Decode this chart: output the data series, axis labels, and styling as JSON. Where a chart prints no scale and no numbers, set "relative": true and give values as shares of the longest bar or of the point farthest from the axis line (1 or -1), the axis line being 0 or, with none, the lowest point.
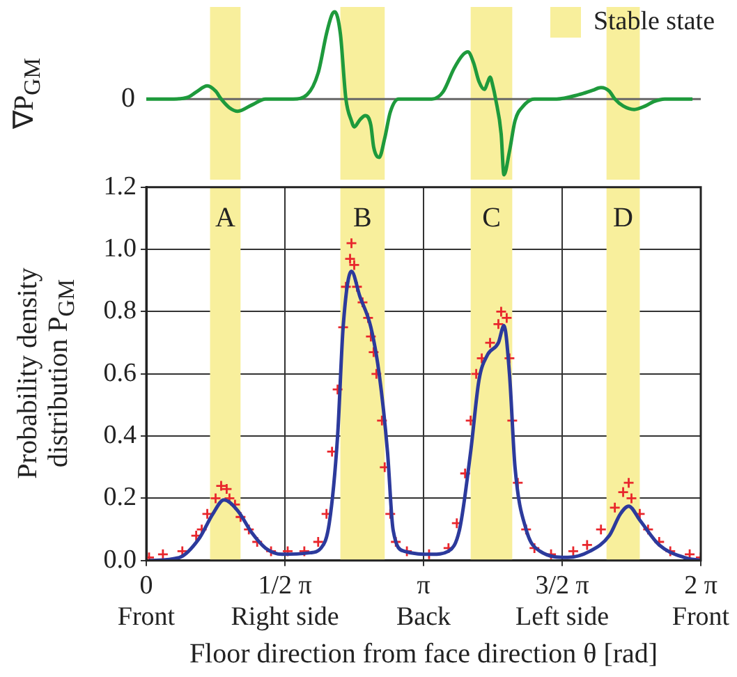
{
  "chart_data": [
    {
      "type": "line",
      "relative": true,
      "ylabel": "∇P$_{GM}$",
      "xlim": [
        0,
        2
      ],
      "tick_labels": false,
      "grid": false,
      "annotations": [
        "Stable state",
        "0"
      ],
      "bands": [
        {
          "axis": "x",
          "from": 0.23,
          "to": 0.34,
          "color": "#f8ef9c"
        },
        {
          "axis": "x",
          "from": 0.7,
          "to": 0.86,
          "color": "#f8ef9c"
        },
        {
          "axis": "x",
          "from": 1.17,
          "to": 1.32,
          "color": "#f8ef9c"
        },
        {
          "axis": "x",
          "from": 1.66,
          "to": 1.78,
          "color": "#f8ef9c"
        }
      ],
      "series": [
        {
          "color": "#1e9a3c",
          "marker": "none",
          "x": [
            0,
            0.1,
            0.15,
            0.18,
            0.22,
            0.25,
            0.27,
            0.3,
            0.33,
            0.38,
            0.43,
            0.53,
            0.58,
            0.62,
            0.65,
            0.67,
            0.68,
            0.7,
            0.72,
            0.74,
            0.75,
            0.77,
            0.79,
            0.81,
            0.82,
            0.84,
            0.86,
            0.88,
            0.91,
            1.03,
            1.07,
            1.11,
            1.14,
            1.16,
            1.18,
            1.2,
            1.22,
            1.23,
            1.24,
            1.25,
            1.26,
            1.28,
            1.29,
            1.31,
            1.33,
            1.36,
            1.4,
            1.48,
            1.56,
            1.61,
            1.64,
            1.67,
            1.69,
            1.72,
            1.76,
            1.8,
            1.83,
            1.87,
            1.97
          ],
          "values": [
            0,
            0,
            0.02,
            0.08,
            0.15,
            0.09,
            0,
            -0.1,
            -0.14,
            -0.07,
            0,
            0,
            0.05,
            0.3,
            0.75,
            0.97,
            1.0,
            0.75,
            0,
            -0.25,
            -0.32,
            -0.24,
            -0.19,
            -0.3,
            -0.55,
            -0.67,
            -0.45,
            -0.15,
            0,
            0,
            0.08,
            0.35,
            0.5,
            0.54,
            0.42,
            0.2,
            0.11,
            0.18,
            0.25,
            0.15,
            0,
            -0.4,
            -0.87,
            -0.6,
            -0.25,
            -0.08,
            0,
            0,
            0.05,
            0.1,
            0.13,
            0.09,
            0,
            -0.08,
            -0.12,
            -0.08,
            -0.03,
            0,
            0
          ]
        }
      ]
    },
    {
      "type": "scatter",
      "ylabel": "Probability density\ndistribution P$_{GM}$",
      "xlabel": "Floor direction from face direction θ [rad]",
      "xlim": [
        0,
        2
      ],
      "ylim": [
        0,
        1.2
      ],
      "grid": true,
      "xticks": [
        {
          "value": 0,
          "label": "0\nFront"
        },
        {
          "value": 0.5,
          "label": "1/2 π\nRight side"
        },
        {
          "value": 1,
          "label": "π\nBack"
        },
        {
          "value": 1.5,
          "label": "3/2 π\nLeft side"
        },
        {
          "value": 2,
          "label": "2 π\nFront"
        }
      ],
      "yticks": [
        {
          "value": 0,
          "label": "0.0"
        },
        {
          "value": 0.2,
          "label": "0.2"
        },
        {
          "value": 0.4,
          "label": "0.4"
        },
        {
          "value": 0.6,
          "label": "0.6"
        },
        {
          "value": 0.8,
          "label": "0.8"
        },
        {
          "value": 1.0,
          "label": "1.0"
        },
        {
          "value": 1.2,
          "label": "1.2"
        }
      ],
      "bands": [
        {
          "axis": "x",
          "from": 0.23,
          "to": 0.34,
          "label": "A",
          "color": "#f8ef9c"
        },
        {
          "axis": "x",
          "from": 0.7,
          "to": 0.86,
          "label": "B",
          "color": "#f8ef9c"
        },
        {
          "axis": "x",
          "from": 1.17,
          "to": 1.32,
          "label": "C",
          "color": "#f8ef9c"
        },
        {
          "axis": "x",
          "from": 1.66,
          "to": 1.78,
          "label": "D",
          "color": "#f8ef9c"
        }
      ],
      "series": [
        {
          "color": "#e8262c",
          "marker": "cross",
          "x": [
            0.01,
            0.06,
            0.13,
            0.18,
            0.2,
            0.22,
            0.25,
            0.27,
            0.29,
            0.3,
            0.32,
            0.34,
            0.37,
            0.4,
            0.45,
            0.51,
            0.57,
            0.62,
            0.65,
            0.67,
            0.69,
            0.71,
            0.72,
            0.735,
            0.74,
            0.75,
            0.76,
            0.78,
            0.8,
            0.81,
            0.82,
            0.83,
            0.85,
            0.86,
            0.88,
            0.9,
            0.94,
            1.02,
            1.09,
            1.12,
            1.15,
            1.17,
            1.19,
            1.21,
            1.24,
            1.27,
            1.28,
            1.3,
            1.31,
            1.32,
            1.34,
            1.37,
            1.4,
            1.46,
            1.54,
            1.59,
            1.64,
            1.69,
            1.72,
            1.74,
            1.75,
            1.78,
            1.81,
            1.85,
            1.89,
            1.96,
            2.0
          ],
          "values": [
            0.01,
            0.02,
            0.03,
            0.08,
            0.1,
            0.15,
            0.2,
            0.24,
            0.23,
            0.2,
            0.18,
            0.14,
            0.1,
            0.06,
            0.03,
            0.03,
            0.03,
            0.06,
            0.15,
            0.35,
            0.55,
            0.75,
            0.88,
            0.97,
            1.02,
            0.95,
            0.88,
            0.83,
            0.78,
            0.72,
            0.67,
            0.6,
            0.45,
            0.3,
            0.15,
            0.06,
            0.03,
            0.02,
            0.04,
            0.12,
            0.28,
            0.45,
            0.6,
            0.65,
            0.7,
            0.76,
            0.8,
            0.78,
            0.65,
            0.45,
            0.25,
            0.1,
            0.04,
            0.02,
            0.03,
            0.05,
            0.1,
            0.17,
            0.22,
            0.25,
            0.2,
            0.15,
            0.1,
            0.06,
            0.03,
            0.02,
            0.01
          ]
        },
        {
          "type": "line",
          "color": "#2c3a9c",
          "marker": "none",
          "x": [
            0.01,
            0.12,
            0.19,
            0.24,
            0.28,
            0.33,
            0.38,
            0.43,
            0.49,
            0.59,
            0.63,
            0.66,
            0.69,
            0.71,
            0.74,
            0.77,
            0.81,
            0.84,
            0.87,
            0.89,
            0.93,
            1.03,
            1.09,
            1.13,
            1.17,
            1.2,
            1.23,
            1.27,
            1.29,
            1.31,
            1.33,
            1.37,
            1.42,
            1.52,
            1.6,
            1.67,
            1.71,
            1.74,
            1.78,
            1.85,
            1.94,
            2.0
          ],
          "values": [
            0.0,
            0.01,
            0.07,
            0.15,
            0.195,
            0.16,
            0.09,
            0.04,
            0.02,
            0.025,
            0.04,
            0.12,
            0.4,
            0.75,
            0.93,
            0.85,
            0.75,
            0.6,
            0.35,
            0.1,
            0.03,
            0.02,
            0.03,
            0.1,
            0.35,
            0.58,
            0.66,
            0.7,
            0.755,
            0.6,
            0.3,
            0.1,
            0.03,
            0.01,
            0.03,
            0.08,
            0.15,
            0.175,
            0.13,
            0.05,
            0.01,
            0.0
          ]
        }
      ]
    }
  ]
}
